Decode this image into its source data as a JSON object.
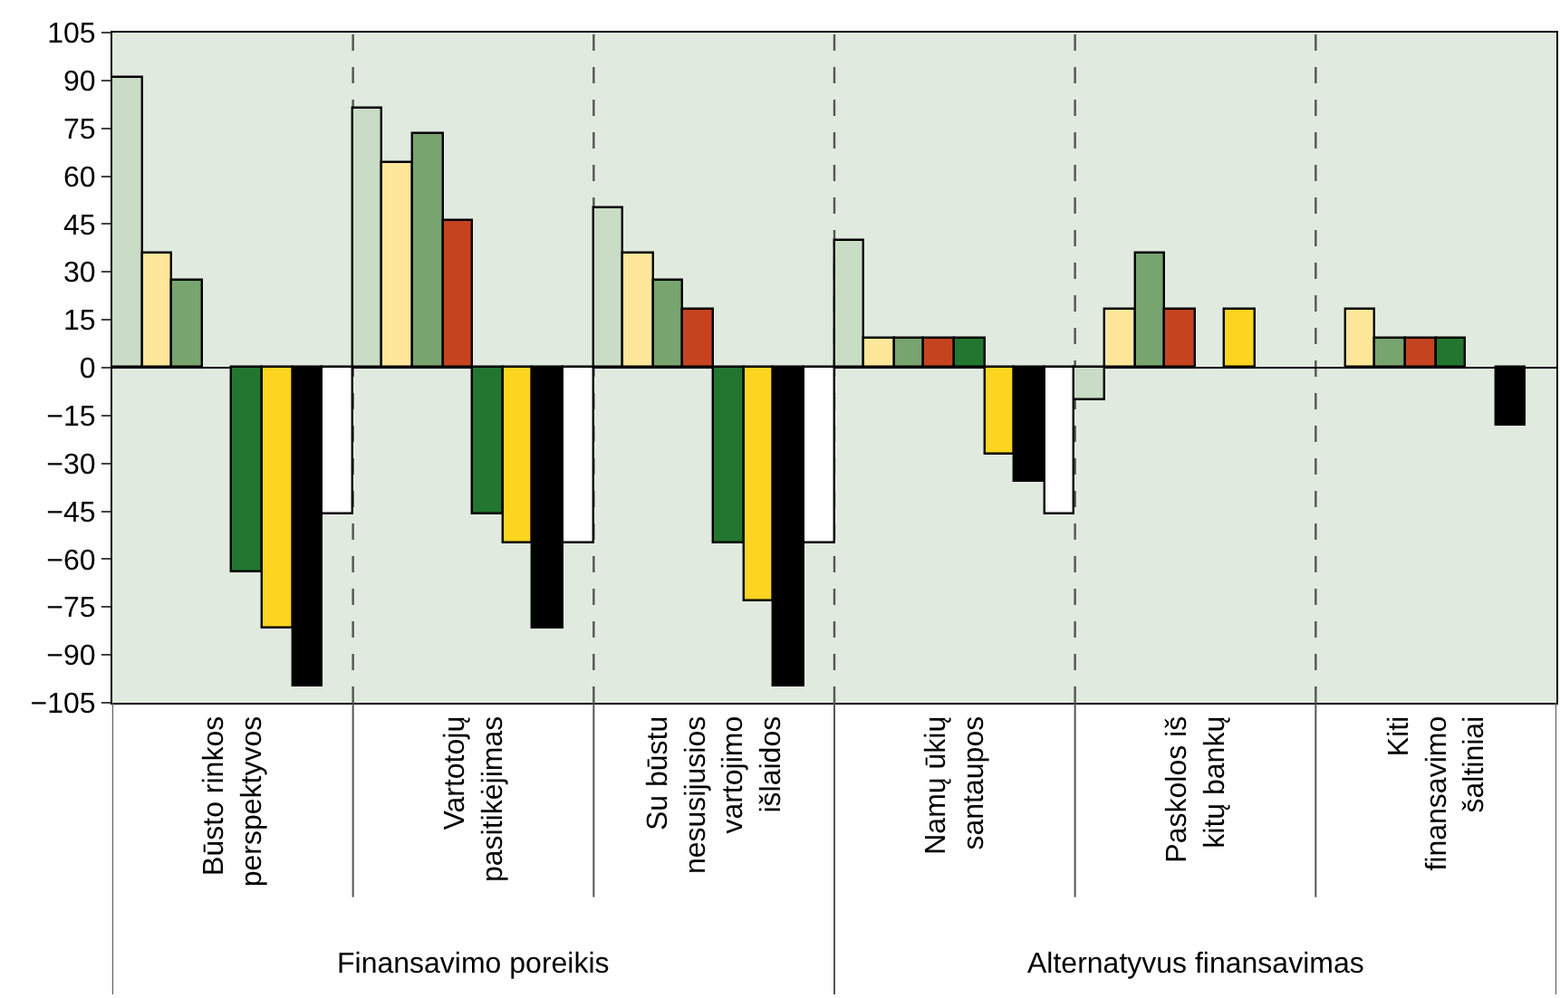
{
  "chart_data": {
    "type": "bar",
    "categories": [
      "Būsto rinkos\nperspektyvos",
      "Vartotojų\npasitikėjimas",
      "Su būstu\nnesusijusios\nvartojimo\nišlaidos",
      "Namų ūkių\nsantaupos",
      "Paskolos iš\nkitų bankų",
      "Kiti\nfinansavimo\nšaltiniai"
    ],
    "series": [
      {
        "color": "#c9dcc5",
        "values": [
          91,
          81,
          50,
          40,
          -10,
          null
        ]
      },
      {
        "color": "#fee79a",
        "values": [
          36,
          64,
          36,
          9,
          18,
          18
        ]
      },
      {
        "color": "#78a46f",
        "values": [
          27,
          73,
          27,
          9,
          36,
          9
        ]
      },
      {
        "color": "#c5441f",
        "values": [
          null,
          46,
          18,
          9,
          18,
          9
        ]
      },
      {
        "color": "#237630",
        "values": [
          -64,
          -46,
          -55,
          9,
          null,
          9
        ]
      },
      {
        "color": "#fdd41f",
        "values": [
          -82,
          -55,
          -73,
          -27,
          18,
          null
        ]
      },
      {
        "color": "#000000",
        "values": [
          -100,
          -82,
          -100,
          -36,
          null,
          -18
        ]
      },
      {
        "color": "#ffffff",
        "values": [
          -46,
          -55,
          -55,
          -46,
          null,
          null
        ]
      }
    ],
    "annotations": [
      "Finansavimo poreikis",
      "Alternatyvus finansavimas"
    ],
    "ylim": [
      -105,
      105
    ],
    "yticks": [
      -105,
      -90,
      -75,
      -60,
      -45,
      -30,
      -15,
      0,
      15,
      30,
      45,
      60,
      75,
      90,
      105
    ],
    "grid": "x"
  }
}
